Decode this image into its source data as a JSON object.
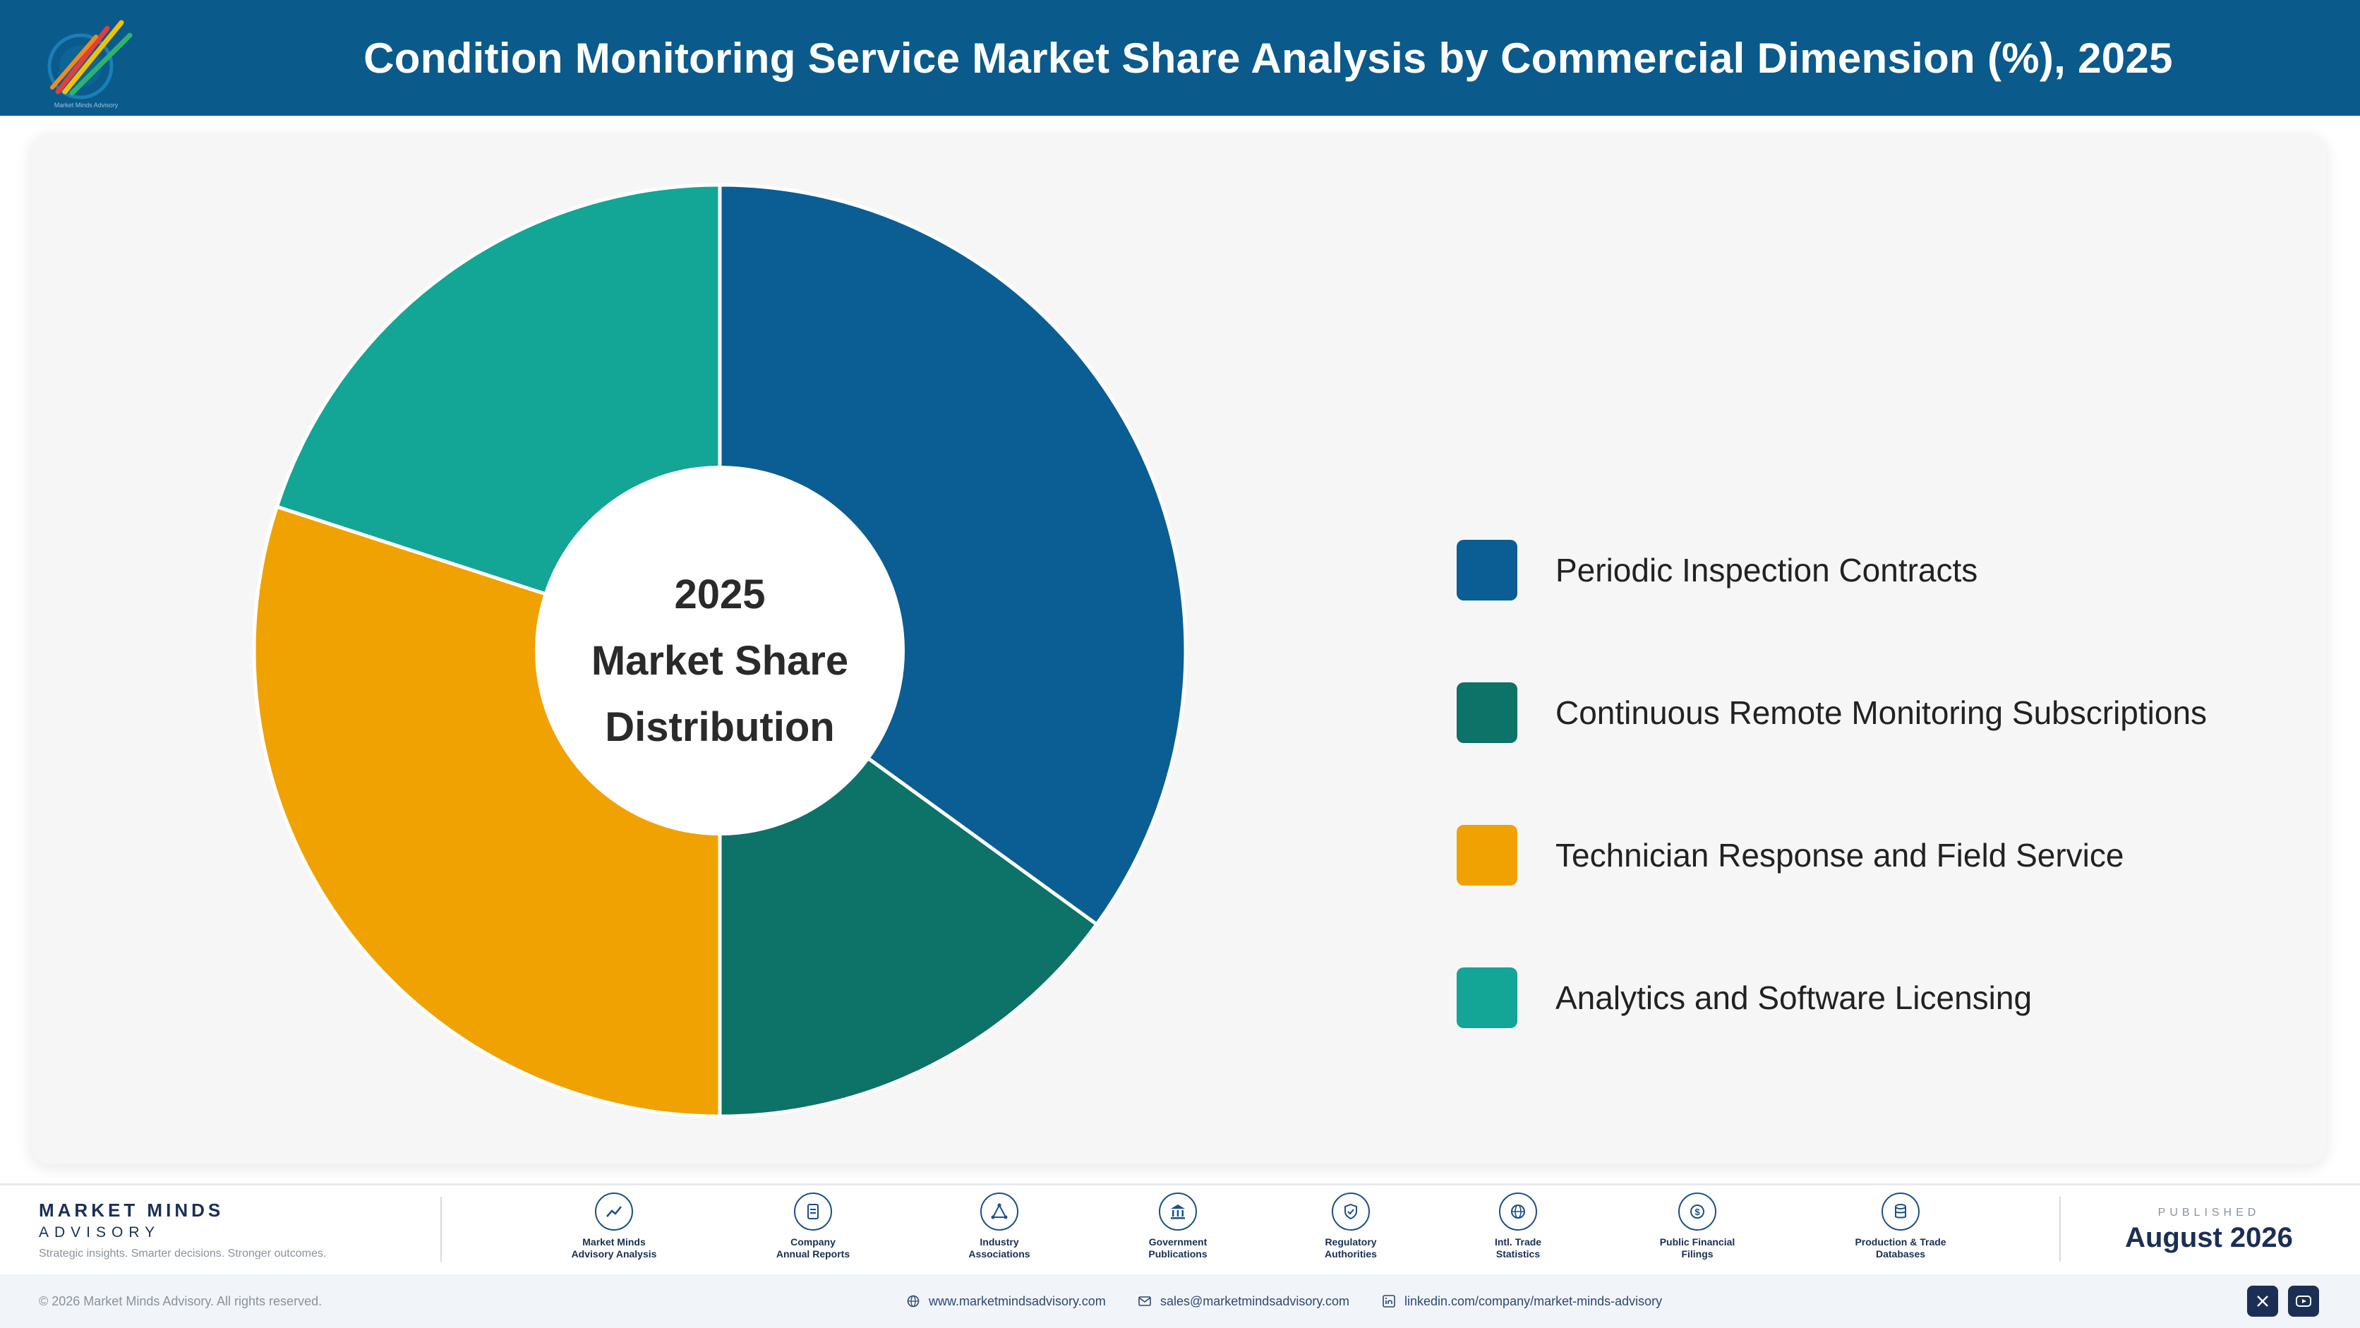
{
  "header": {
    "title": "Condition Monitoring Service Market Share Analysis by Commercial Dimension (%), 2025",
    "logo_text": "Market Minds Advisory"
  },
  "chart_data": {
    "type": "pie",
    "style": "donut",
    "center_label": [
      "2025",
      "Market Share",
      "Distribution"
    ],
    "categories": [
      "Periodic Inspection Contracts",
      "Continuous Remote Monitoring Subscriptions",
      "Technician Response and Field Service",
      "Analytics and Software Licensing"
    ],
    "values": [
      35,
      15,
      30,
      20
    ],
    "colors": [
      "#0a5e93",
      "#0d7268",
      "#f0a202",
      "#13a595"
    ],
    "legend_position": "right",
    "grid": false
  },
  "footer": {
    "brand_name": "MARKET MINDS",
    "brand_sub": "ADVISORY",
    "tagline": "Strategic insights. Smarter decisions. Stronger outcomes.",
    "sources": [
      {
        "icon": "trend-chart-icon",
        "label": "Market Minds\nAdvisory Analysis"
      },
      {
        "icon": "document-icon",
        "label": "Company\nAnnual Reports"
      },
      {
        "icon": "network-icon",
        "label": "Industry\nAssociations"
      },
      {
        "icon": "government-building-icon",
        "label": "Government\nPublications"
      },
      {
        "icon": "shield-check-icon",
        "label": "Regulatory\nAuthorities"
      },
      {
        "icon": "globe-icon",
        "label": "Intl. Trade\nStatistics"
      },
      {
        "icon": "dollar-coin-icon",
        "label": "Public Financial\nFilings"
      },
      {
        "icon": "database-icon",
        "label": "Production & Trade\nDatabases"
      }
    ],
    "published_label": "PUBLISHED",
    "published_date": "August 2026"
  },
  "bottom_bar": {
    "copyright": "© 2026 Market Minds Advisory. All rights reserved.",
    "website": "www.marketmindsadvisory.com",
    "email": "sales@marketmindsadvisory.com",
    "linkedin": "linkedin.com/company/market-minds-advisory"
  }
}
